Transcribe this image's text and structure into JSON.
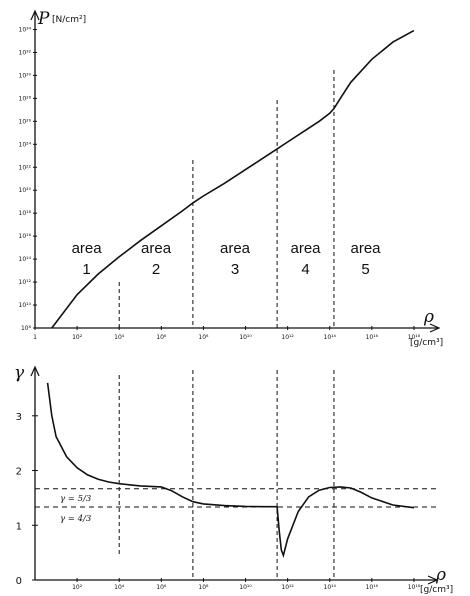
{
  "chart_data": [
    {
      "type": "line",
      "xscale": "log",
      "yscale": "log",
      "x_tick_labels": [
        "1",
        "10^2",
        "10^4",
        "10^6",
        "10^8",
        "10^10",
        "10^12",
        "10^14",
        "10^16",
        "10^18"
      ],
      "y_tick_labels": [
        "10^8",
        "10^10",
        "10^12",
        "10^14",
        "10^16",
        "10^18",
        "10^20",
        "10^22",
        "10^24",
        "10^26",
        "10^28",
        "10^30",
        "10^32",
        "10^34"
      ],
      "ylabel_symbol": "P",
      "ylabel_unit": "[N/cm²]",
      "xlabel_symbol": "ρ",
      "xlabel_unit": "[g/cm³]",
      "boundaries": [
        4,
        7.5,
        11.5,
        14.2
      ],
      "areas": [
        {
          "word": "area",
          "number": "1"
        },
        {
          "word": "area",
          "number": "2"
        },
        {
          "word": "area",
          "number": "3"
        },
        {
          "word": "area",
          "number": "4"
        },
        {
          "word": "area",
          "number": "5"
        }
      ],
      "series": [
        {
          "x": [
            0.8,
            2,
            3,
            4,
            5,
            6,
            7,
            7.5,
            8,
            9,
            10,
            11,
            11.5,
            12,
            13,
            13.5,
            14,
            14.2,
            14.5,
            15,
            16,
            17,
            18
          ],
          "y": [
            8,
            10.9,
            12.7,
            14.2,
            15.6,
            16.9,
            18.2,
            18.9,
            19.5,
            20.6,
            21.8,
            23,
            23.6,
            24.2,
            25.4,
            26,
            26.7,
            27.1,
            28,
            29.4,
            31.4,
            32.9,
            33.9
          ]
        }
      ],
      "xlim": [
        0,
        19
      ],
      "ylim": [
        8,
        35
      ]
    },
    {
      "type": "line",
      "xscale": "log",
      "x_tick_labels": [
        "10^2",
        "10^4",
        "10^6",
        "10^8",
        "10^10",
        "10^12",
        "10^14",
        "10^16",
        "10^18"
      ],
      "y_tick_labels": [
        "0",
        "1",
        "2",
        "3"
      ],
      "ylabel_symbol": "γ",
      "xlabel_symbol": "ρ",
      "xlabel_unit": "[g/cm³]",
      "reference_lines": [
        {
          "y": 1.667,
          "label": "γ = 5/3"
        },
        {
          "y": 1.333,
          "label": "γ = 4/3"
        }
      ],
      "boundaries": [
        4,
        7.5,
        11.5,
        14.2
      ],
      "series": [
        {
          "x": [
            0.6,
            0.8,
            1,
            1.5,
            2,
            2.5,
            3,
            3.5,
            4,
            5,
            6,
            6.5,
            7,
            7.5,
            8,
            9,
            10,
            11,
            11.5,
            11.6,
            11.7,
            11.8,
            12,
            12.5,
            13,
            13.5,
            14,
            14.5,
            15,
            15.5,
            16,
            17,
            18
          ],
          "y": [
            3.6,
            3.0,
            2.62,
            2.25,
            2.05,
            1.92,
            1.84,
            1.79,
            1.76,
            1.72,
            1.7,
            1.63,
            1.52,
            1.43,
            1.39,
            1.36,
            1.345,
            1.34,
            1.34,
            0.9,
            0.55,
            0.45,
            0.75,
            1.25,
            1.52,
            1.64,
            1.69,
            1.7,
            1.68,
            1.6,
            1.5,
            1.37,
            1.32
          ]
        }
      ],
      "xlim": [
        0,
        19
      ],
      "ylim": [
        0,
        3.8
      ]
    }
  ]
}
